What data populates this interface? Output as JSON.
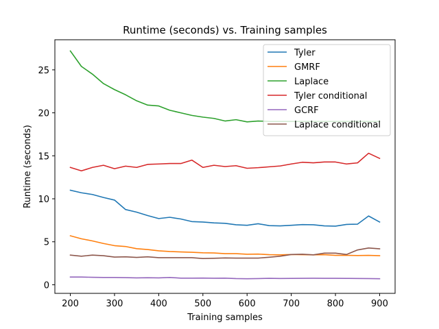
{
  "chart_data": {
    "type": "line",
    "title": "Runtime (seconds) vs. Training samples",
    "xlabel": "Training samples",
    "ylabel": "Runtime (seconds)",
    "xlim": [
      165,
      935
    ],
    "ylim": [
      -1.0,
      28.5
    ],
    "xticks": [
      200,
      300,
      400,
      500,
      600,
      700,
      800,
      900
    ],
    "yticks": [
      0,
      5,
      10,
      15,
      20,
      25
    ],
    "grid": false,
    "legend_position": "top-right",
    "x": [
      200,
      225,
      250,
      275,
      300,
      325,
      350,
      375,
      400,
      425,
      450,
      475,
      500,
      525,
      550,
      575,
      600,
      625,
      650,
      675,
      700,
      725,
      750,
      775,
      800,
      825,
      850,
      875,
      900
    ],
    "series": [
      {
        "name": "Tyler",
        "color": "#1f77b4",
        "values": [
          11.0,
          10.7,
          10.5,
          10.15,
          9.85,
          8.75,
          8.45,
          8.05,
          7.7,
          7.85,
          7.65,
          7.35,
          7.3,
          7.2,
          7.15,
          6.98,
          6.92,
          7.1,
          6.88,
          6.85,
          6.92,
          7.0,
          6.98,
          6.85,
          6.82,
          7.02,
          7.05,
          8.0,
          7.3
        ]
      },
      {
        "name": "GMRF",
        "color": "#ff7f0e",
        "values": [
          5.7,
          5.35,
          5.1,
          4.8,
          4.55,
          4.45,
          4.2,
          4.1,
          3.95,
          3.87,
          3.82,
          3.78,
          3.72,
          3.7,
          3.62,
          3.62,
          3.55,
          3.57,
          3.5,
          3.48,
          3.52,
          3.5,
          3.48,
          3.5,
          3.42,
          3.42,
          3.4,
          3.42,
          3.38
        ]
      },
      {
        "name": "Laplace",
        "color": "#2ca02c",
        "values": [
          27.2,
          25.4,
          24.5,
          23.4,
          22.7,
          22.1,
          21.4,
          20.9,
          20.8,
          20.3,
          20.0,
          19.7,
          19.5,
          19.35,
          19.05,
          19.2,
          18.95,
          19.05,
          19.0,
          19.0,
          19.0,
          19.0,
          19.0,
          19.0,
          19.0,
          19.0,
          19.0,
          19.0,
          19.0
        ]
      },
      {
        "name": "Tyler conditional",
        "color": "#d62728",
        "values": [
          13.65,
          13.25,
          13.65,
          13.9,
          13.5,
          13.8,
          13.65,
          14.0,
          14.05,
          14.1,
          14.1,
          14.5,
          13.65,
          13.9,
          13.75,
          13.85,
          13.55,
          13.62,
          13.72,
          13.82,
          14.05,
          14.25,
          14.18,
          14.28,
          14.28,
          14.05,
          14.18,
          15.3,
          14.7
        ]
      },
      {
        "name": "GCRF",
        "color": "#9467bd",
        "values": [
          0.9,
          0.9,
          0.87,
          0.85,
          0.85,
          0.83,
          0.8,
          0.82,
          0.8,
          0.85,
          0.77,
          0.77,
          0.78,
          0.76,
          0.77,
          0.72,
          0.7,
          0.72,
          0.75,
          0.73,
          0.74,
          0.75,
          0.76,
          0.75,
          0.75,
          0.74,
          0.73,
          0.72,
          0.7
        ]
      },
      {
        "name": "Laplace conditional",
        "color": "#8c564b",
        "values": [
          3.45,
          3.32,
          3.45,
          3.38,
          3.22,
          3.25,
          3.18,
          3.25,
          3.15,
          3.15,
          3.15,
          3.15,
          3.05,
          3.08,
          3.12,
          3.1,
          3.1,
          3.1,
          3.2,
          3.32,
          3.52,
          3.55,
          3.48,
          3.68,
          3.68,
          3.52,
          4.05,
          4.28,
          4.18
        ]
      }
    ]
  }
}
